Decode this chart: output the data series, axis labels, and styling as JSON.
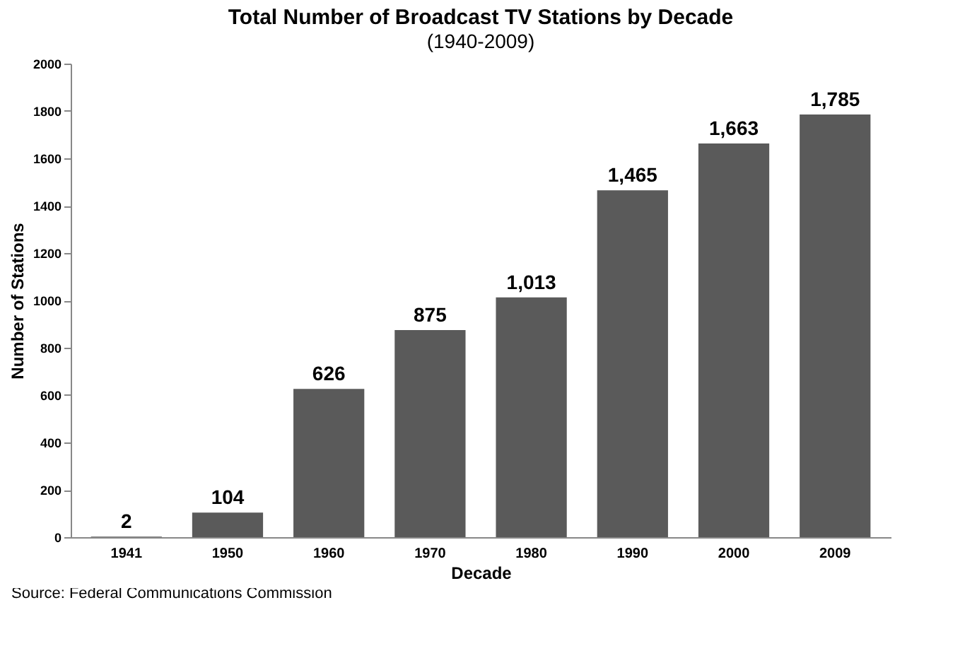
{
  "chart_data": {
    "type": "bar",
    "title": "Total Number of Broadcast TV Stations by Decade",
    "subtitle": "(1940-2009)",
    "xlabel": "Decade",
    "ylabel": "Number of Stations",
    "categories": [
      "1941",
      "1950",
      "1960",
      "1970",
      "1980",
      "1990",
      "2000",
      "2009"
    ],
    "values": [
      2,
      104,
      626,
      875,
      1013,
      1465,
      1663,
      1785
    ],
    "value_labels": [
      "2",
      "104",
      "626",
      "875",
      "1,013",
      "1,465",
      "1,663",
      "1,785"
    ],
    "color": "#5a5a5a",
    "ylim": [
      0,
      2000
    ],
    "yticks": [
      0,
      200,
      400,
      600,
      800,
      1000,
      1200,
      1400,
      1600,
      1800,
      2000
    ],
    "grid": false,
    "annotations": [
      "Source: Federal Communications Commission"
    ]
  }
}
